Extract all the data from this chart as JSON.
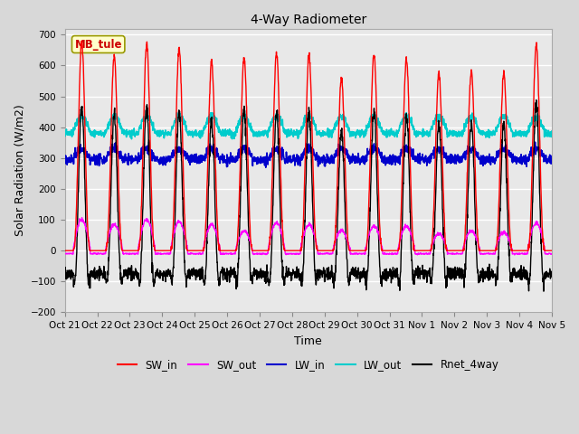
{
  "title": "4-Way Radiometer",
  "xlabel": "Time",
  "ylabel": "Solar Radiation (W/m2)",
  "annotation": "MB_tule",
  "ylim": [
    -200,
    720
  ],
  "yticks": [
    -200,
    -100,
    0,
    100,
    200,
    300,
    400,
    500,
    600,
    700
  ],
  "x_labels": [
    "Oct 21",
    "Oct 22",
    "Oct 23",
    "Oct 24",
    "Oct 25",
    "Oct 26",
    "Oct 27",
    "Oct 28",
    "Oct 29",
    "Oct 30",
    "Oct 31",
    "Nov 1",
    "Nov 2",
    "Nov 3",
    "Nov 4",
    "Nov 5"
  ],
  "n_days": 15,
  "points_per_day": 144,
  "SW_in_peaks": [
    675,
    630,
    670,
    655,
    610,
    625,
    640,
    635,
    560,
    635,
    620,
    570,
    580,
    575,
    670
  ],
  "SW_out_peaks": [
    100,
    85,
    100,
    95,
    85,
    65,
    90,
    85,
    65,
    80,
    80,
    55,
    65,
    60,
    90
  ],
  "LW_in_base": 295,
  "LW_out_base": 380,
  "colors": {
    "SW_in": "#ff0000",
    "SW_out": "#ff00ff",
    "LW_in": "#0000cc",
    "LW_out": "#00cccc",
    "Rnet_4way": "#000000"
  },
  "line_widths": {
    "SW_in": 1.0,
    "SW_out": 1.0,
    "LW_in": 1.2,
    "LW_out": 1.2,
    "Rnet_4way": 1.0
  },
  "bg_color": "#d8d8d8",
  "plot_bg_color": "#e8e8e8",
  "figsize": [
    6.4,
    4.8
  ],
  "dpi": 100
}
